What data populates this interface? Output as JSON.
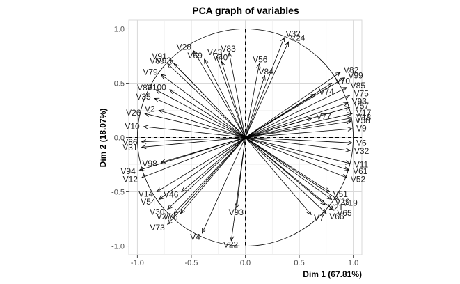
{
  "chart_data": {
    "type": "scatter",
    "title": "PCA graph of variables",
    "xlabel": "Dim 1 (67.81%)",
    "ylabel": "Dim 2 (18.07%)",
    "xlim": [
      -1.08,
      1.08
    ],
    "ylim": [
      -1.08,
      1.08
    ],
    "x_ticks": [
      -1.0,
      -0.5,
      0.0,
      0.5,
      1.0
    ],
    "y_ticks": [
      -1.0,
      -0.5,
      0.0,
      0.5,
      1.0
    ],
    "x_tick_labels": [
      "-1.0",
      "-0.5",
      "0.0",
      "0.5",
      "1.0"
    ],
    "y_tick_labels": [
      "-1.0",
      "-0.5",
      "0.0",
      "0.5",
      "1.0"
    ],
    "grid": true,
    "correlation_circle": true,
    "variables": [
      {
        "name": "V32",
        "x": 0.36,
        "y": 0.92
      },
      {
        "name": "V24",
        "x": 0.4,
        "y": 0.88
      },
      {
        "name": "V28",
        "x": -0.48,
        "y": 0.8
      },
      {
        "name": "V83",
        "x": -0.15,
        "y": 0.78
      },
      {
        "name": "V43",
        "x": -0.27,
        "y": 0.75
      },
      {
        "name": "V69",
        "x": -0.38,
        "y": 0.72
      },
      {
        "name": "V91",
        "x": -0.7,
        "y": 0.72
      },
      {
        "name": "V40",
        "x": -0.22,
        "y": 0.7
      },
      {
        "name": "V56",
        "x": 0.13,
        "y": 0.68
      },
      {
        "name": "V89",
        "x": -0.72,
        "y": 0.68
      },
      {
        "name": "V92",
        "x": -0.66,
        "y": 0.68
      },
      {
        "name": "V79",
        "x": -0.78,
        "y": 0.58
      },
      {
        "name": "V84",
        "x": 0.18,
        "y": 0.57
      },
      {
        "name": "V82",
        "x": 0.88,
        "y": 0.6
      },
      {
        "name": "V99",
        "x": 0.92,
        "y": 0.55
      },
      {
        "name": "V70",
        "x": 0.8,
        "y": 0.5
      },
      {
        "name": "V100",
        "x": -0.7,
        "y": 0.44
      },
      {
        "name": "V80",
        "x": -0.83,
        "y": 0.44
      },
      {
        "name": "V85",
        "x": 0.94,
        "y": 0.46
      },
      {
        "name": "V74",
        "x": 0.65,
        "y": 0.4
      },
      {
        "name": "V75",
        "x": 0.97,
        "y": 0.39
      },
      {
        "name": "V35",
        "x": -0.84,
        "y": 0.36
      },
      {
        "name": "V93",
        "x": 0.95,
        "y": 0.32
      },
      {
        "name": "V57",
        "x": 0.97,
        "y": 0.28
      },
      {
        "name": "V2",
        "x": -0.8,
        "y": 0.25
      },
      {
        "name": "V26",
        "x": -0.93,
        "y": 0.22
      },
      {
        "name": "V17",
        "x": 0.99,
        "y": 0.22
      },
      {
        "name": "V77",
        "x": 0.62,
        "y": 0.18
      },
      {
        "name": "V18",
        "x": 0.99,
        "y": 0.18
      },
      {
        "name": "V58",
        "x": 0.98,
        "y": 0.15
      },
      {
        "name": "V10",
        "x": -0.94,
        "y": 0.1
      },
      {
        "name": "V9",
        "x": 0.99,
        "y": 0.08
      },
      {
        "name": "V6",
        "x": 0.99,
        "y": -0.05
      },
      {
        "name": "V86",
        "x": -0.96,
        "y": -0.04
      },
      {
        "name": "V31",
        "x": -0.96,
        "y": -0.09
      },
      {
        "name": "V32",
        "x": 0.97,
        "y": -0.12
      },
      {
        "name": "V98",
        "x": -0.78,
        "y": -0.23
      },
      {
        "name": "V11",
        "x": 0.97,
        "y": -0.24
      },
      {
        "name": "V61",
        "x": 0.96,
        "y": -0.3
      },
      {
        "name": "V94",
        "x": -0.98,
        "y": -0.3
      },
      {
        "name": "V12",
        "x": -0.96,
        "y": -0.37
      },
      {
        "name": "V52",
        "x": 0.94,
        "y": -0.37
      },
      {
        "name": "V14",
        "x": -0.82,
        "y": -0.5
      },
      {
        "name": "V46",
        "x": -0.59,
        "y": -0.5
      },
      {
        "name": "V51",
        "x": 0.78,
        "y": -0.5
      },
      {
        "name": "V54",
        "x": -0.8,
        "y": -0.57
      },
      {
        "name": "V29",
        "x": 0.8,
        "y": -0.57
      },
      {
        "name": "V19",
        "x": 0.87,
        "y": -0.58
      },
      {
        "name": "V21",
        "x": 0.74,
        "y": -0.62
      },
      {
        "name": "V65",
        "x": 0.82,
        "y": -0.67
      },
      {
        "name": "V7",
        "x": 0.61,
        "y": -0.71
      },
      {
        "name": "V66",
        "x": 0.75,
        "y": -0.7
      },
      {
        "name": "V30",
        "x": -0.72,
        "y": -0.66
      },
      {
        "name": "V27",
        "x": -0.66,
        "y": -0.7
      },
      {
        "name": "V76",
        "x": -0.6,
        "y": -0.7
      },
      {
        "name": "V93",
        "x": -0.08,
        "y": -0.65
      },
      {
        "name": "V73",
        "x": -0.72,
        "y": -0.8
      },
      {
        "name": "V4",
        "x": -0.4,
        "y": -0.88
      },
      {
        "name": "V22",
        "x": -0.13,
        "y": -0.95
      }
    ]
  }
}
